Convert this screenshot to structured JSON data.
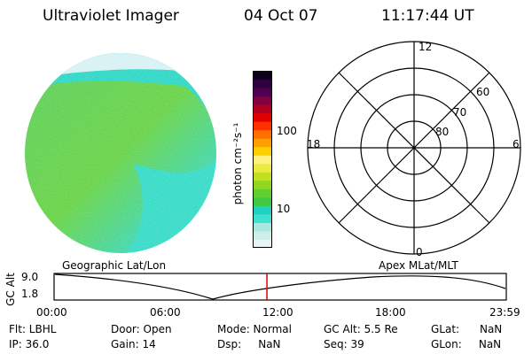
{
  "header": {
    "instrument": "Ultraviolet Imager",
    "date": "04 Oct 07",
    "time": "11:17:44 UT"
  },
  "colorbar": {
    "label": "photon cm⁻²s⁻¹",
    "ticks": [
      {
        "label": "100",
        "value": 100
      },
      {
        "label": "10",
        "value": 10
      }
    ],
    "colors": [
      "#e8f4f8",
      "#cfeee8",
      "#a8e8e0",
      "#40e0d0",
      "#20d0c0",
      "#40c840",
      "#60d030",
      "#90d820",
      "#c0e020",
      "#e8ec40",
      "#fff080",
      "#ffd000",
      "#ffa000",
      "#ff7000",
      "#ff3000",
      "#e00000",
      "#b00020",
      "#800040",
      "#500050",
      "#300040",
      "#100020"
    ]
  },
  "polar": {
    "labels": [
      "12",
      "6",
      "0",
      "18"
    ],
    "lat_labels": [
      "60",
      "70",
      "80"
    ]
  },
  "timeline": {
    "left_label": "Geographic Lat/Lon",
    "right_label": "Apex  MLat/MLT",
    "axis_title": "GC Alt",
    "y_ticks": [
      "9.0",
      "1.8"
    ],
    "x_ticks": [
      "00:00",
      "06:00",
      "12:00",
      "18:00",
      "23:59"
    ],
    "marker_time_hours": 11.296
  },
  "footer": {
    "col1": [
      "Flt: LBHL",
      "IP: 36.0"
    ],
    "col2": [
      "Door: Open",
      "Gain: 14"
    ],
    "col3": [
      "Mode: Normal",
      "Dsp:     NaN"
    ],
    "col4": [
      "GC Alt: 5.5 Re",
      "Seq: 39"
    ],
    "col5": [
      "GLat:      NaN",
      "GLon:     NaN"
    ]
  }
}
